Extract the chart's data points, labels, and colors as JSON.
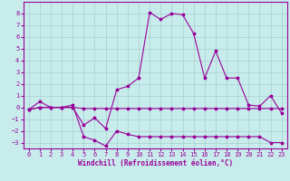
{
  "background_color": "#c8ecec",
  "line_color": "#990099",
  "xlim": [
    -0.5,
    23.5
  ],
  "ylim": [
    -3.5,
    9.0
  ],
  "yticks": [
    -3,
    -2,
    -1,
    0,
    1,
    2,
    3,
    4,
    5,
    6,
    7,
    8
  ],
  "xticks": [
    0,
    1,
    2,
    3,
    4,
    5,
    6,
    7,
    8,
    9,
    10,
    11,
    12,
    13,
    14,
    15,
    16,
    17,
    18,
    19,
    20,
    21,
    22,
    23
  ],
  "xlabel": "Windchill (Refroidissement éolien,°C)",
  "line1_x": [
    0,
    1,
    2,
    3,
    4,
    5,
    6,
    7,
    8,
    9,
    10,
    11,
    12,
    13,
    14,
    15,
    16,
    17,
    18,
    19,
    20,
    21,
    22,
    23
  ],
  "line1_y": [
    -0.2,
    0.5,
    0.0,
    0.0,
    0.0,
    -1.5,
    -0.9,
    -1.8,
    1.5,
    1.8,
    2.5,
    8.1,
    7.5,
    8.0,
    7.9,
    6.3,
    2.5,
    4.8,
    2.5,
    2.5,
    0.2,
    0.1,
    1.0,
    -0.5
  ],
  "line2_x": [
    0,
    1,
    2,
    3,
    4,
    5,
    6,
    7,
    8,
    9,
    10,
    11,
    12,
    13,
    14,
    15,
    16,
    17,
    18,
    19,
    20,
    21,
    22,
    23
  ],
  "line2_y": [
    -0.2,
    0.0,
    0.0,
    0.0,
    0.0,
    -0.1,
    -0.1,
    -0.1,
    -0.1,
    -0.1,
    -0.1,
    -0.1,
    -0.1,
    -0.1,
    -0.1,
    -0.1,
    -0.1,
    -0.1,
    -0.1,
    -0.1,
    -0.1,
    -0.1,
    -0.1,
    -0.1
  ],
  "line3_x": [
    0,
    1,
    2,
    3,
    4,
    5,
    6,
    7,
    8,
    9,
    10,
    11,
    12,
    13,
    14,
    15,
    16,
    17,
    18,
    19,
    20,
    21,
    22,
    23
  ],
  "line3_y": [
    -0.2,
    0.0,
    0.0,
    0.0,
    0.2,
    -2.5,
    -2.8,
    -3.3,
    -2.0,
    -2.3,
    -2.5,
    -2.5,
    -2.5,
    -2.5,
    -2.5,
    -2.5,
    -2.5,
    -2.5,
    -2.5,
    -2.5,
    -2.5,
    -2.5,
    -3.0,
    -3.0
  ]
}
